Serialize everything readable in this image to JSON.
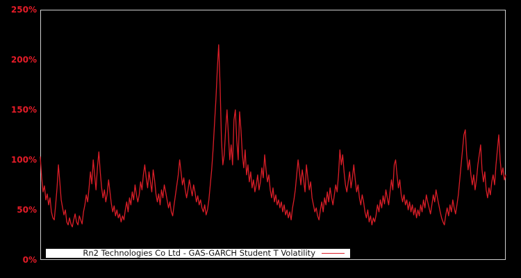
{
  "colors": {
    "background": "#000000",
    "line": "#dc1e28",
    "tick_label": "#e51c28",
    "axis_border": "#d0d0d0",
    "legend_background": "#ffffff",
    "legend_text": "#111111"
  },
  "chart_data": {
    "type": "line",
    "title": "",
    "xlabel": "",
    "ylabel": "",
    "legend_label": "Rn2 Technologies Co Ltd - GAS-GARCH Student T Volatility",
    "legend_position": "lower center",
    "grid": false,
    "unit": "percent",
    "ylim": [
      0,
      250
    ],
    "yticks": [
      "0%",
      "50%",
      "100%",
      "150%",
      "200%",
      "250%"
    ],
    "x_axis_labels_visible": false,
    "series": [
      {
        "name": "GAS-GARCH Student T Volatility",
        "color": "#dc1e28",
        "values_pct": [
          103,
          82,
          68,
          74,
          60,
          66,
          55,
          62,
          48,
          42,
          40,
          55,
          72,
          95,
          78,
          60,
          52,
          45,
          50,
          38,
          35,
          42,
          36,
          33,
          40,
          46,
          38,
          35,
          44,
          40,
          36,
          48,
          55,
          65,
          58,
          72,
          88,
          76,
          100,
          85,
          70,
          92,
          108,
          88,
          72,
          62,
          70,
          58,
          66,
          80,
          68,
          56,
          48,
          54,
          44,
          50,
          42,
          46,
          38,
          44,
          40,
          50,
          58,
          48,
          62,
          55,
          68,
          60,
          75,
          65,
          58,
          65,
          78,
          70,
          85,
          95,
          82,
          72,
          88,
          78,
          68,
          90,
          80,
          66,
          58,
          66,
          55,
          70,
          62,
          75,
          68,
          60,
          52,
          58,
          48,
          44,
          55,
          65,
          75,
          85,
          100,
          88,
          75,
          82,
          70,
          62,
          70,
          80,
          72,
          64,
          75,
          68,
          58,
          64,
          55,
          60,
          52,
          48,
          55,
          45,
          50,
          60,
          75,
          90,
          110,
          135,
          160,
          190,
          215,
          175,
          120,
          95,
          105,
          130,
          150,
          125,
          100,
          115,
          95,
          140,
          150,
          120,
          100,
          148,
          130,
          105,
          92,
          110,
          85,
          95,
          78,
          88,
          72,
          80,
          68,
          75,
          85,
          70,
          78,
          92,
          82,
          105,
          90,
          78,
          85,
          70,
          62,
          72,
          58,
          65,
          55,
          60,
          52,
          58,
          48,
          55,
          45,
          50,
          42,
          48,
          40,
          52,
          60,
          70,
          85,
          100,
          88,
          75,
          90,
          80,
          68,
          95,
          82,
          70,
          78,
          62,
          55,
          48,
          52,
          44,
          40,
          50,
          58,
          48,
          62,
          55,
          68,
          58,
          72,
          62,
          55,
          65,
          75,
          68,
          85,
          110,
          95,
          105,
          88,
          75,
          68,
          78,
          88,
          72,
          82,
          95,
          80,
          68,
          75,
          62,
          55,
          65,
          58,
          48,
          42,
          50,
          38,
          44,
          35,
          42,
          38,
          45,
          55,
          48,
          60,
          52,
          64,
          56,
          70,
          62,
          55,
          68,
          80,
          70,
          95,
          100,
          85,
          72,
          80,
          65,
          58,
          65,
          55,
          60,
          50,
          58,
          48,
          55,
          45,
          52,
          42,
          50,
          44,
          55,
          48,
          60,
          52,
          65,
          58,
          52,
          46,
          55,
          65,
          58,
          70,
          62,
          55,
          48,
          42,
          38,
          35,
          45,
          52,
          44,
          55,
          48,
          60,
          52,
          46,
          55,
          65,
          80,
          95,
          110,
          125,
          130,
          105,
          90,
          100,
          85,
          75,
          85,
          70,
          80,
          95,
          105,
          115,
          90,
          78,
          88,
          70,
          62,
          72,
          65,
          78,
          85,
          75,
          95,
          110,
          125,
          100,
          85,
          92,
          80,
          85
        ]
      }
    ]
  }
}
